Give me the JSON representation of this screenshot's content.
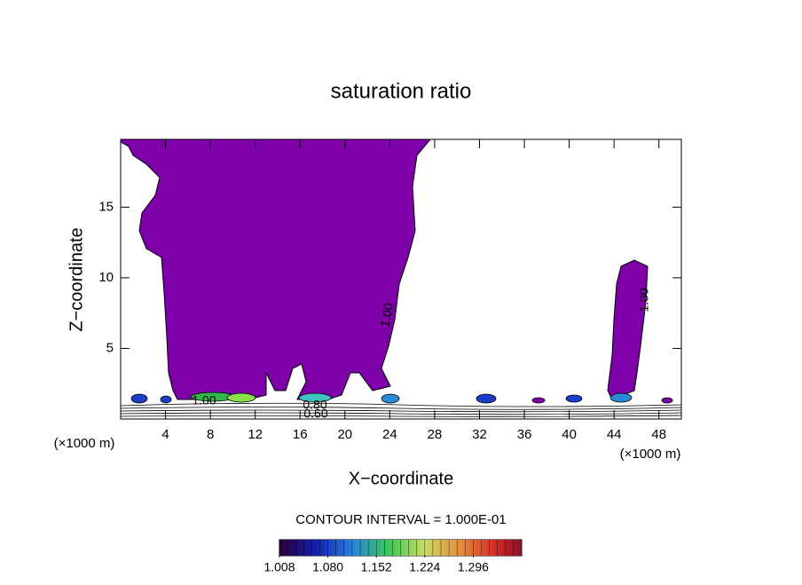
{
  "chart_data": {
    "type": "contour",
    "title": "saturation ratio",
    "x_label": "X−coordinate",
    "y_label": "Z−coordinate",
    "x_unit": "(×1000 m)",
    "y_unit": "(×1000 m)",
    "xlim": [
      0,
      50
    ],
    "ylim": [
      0,
      19.8
    ],
    "xticks": [
      4,
      8,
      12,
      16,
      20,
      24,
      28,
      32,
      36,
      40,
      44,
      48
    ],
    "yticks": [
      5,
      10,
      15
    ],
    "fill_color": "#7d00a8",
    "contour_labels": [
      {
        "value": 1,
        "label": "1.00"
      },
      {
        "value": 1,
        "label": "1.00"
      },
      {
        "value": 1,
        "label": "1.00"
      },
      {
        "value": 0.8,
        "label": "0.80"
      },
      {
        "value": 0.6,
        "label": "0.60"
      }
    ],
    "contour_interval": "CONTOUR INTERVAL = 1.000E-01",
    "colorbar": {
      "lim": [
        1.008,
        1.368
      ],
      "ticks": [
        1.008,
        {
          "value": 1.08,
          "label": "1.080"
        },
        1.152,
        1.224,
        1.296
      ]
    }
  }
}
